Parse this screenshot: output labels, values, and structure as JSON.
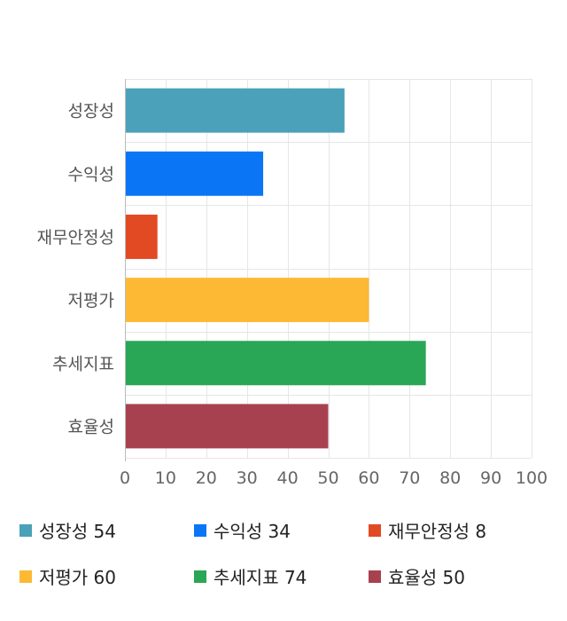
{
  "chart_data": {
    "type": "bar",
    "orientation": "horizontal",
    "categories": [
      "성장성",
      "수익성",
      "재무안정성",
      "저평가",
      "추세지표",
      "효율성"
    ],
    "values": [
      54,
      34,
      8,
      60,
      74,
      50
    ],
    "colors": [
      "#4aa1b9",
      "#0a76f5",
      "#e24a24",
      "#fdb933",
      "#29a656",
      "#a8414f"
    ],
    "xlim": [
      0,
      100
    ],
    "xticks": [
      0,
      10,
      20,
      30,
      40,
      50,
      60,
      70,
      80,
      90,
      100
    ],
    "grid": true,
    "legend_position": "bottom"
  },
  "legend": {
    "items": [
      {
        "label": "성장성 54",
        "color": "#4aa1b9"
      },
      {
        "label": "수익성 34",
        "color": "#0a76f5"
      },
      {
        "label": "재무안정성 8",
        "color": "#e24a24"
      },
      {
        "label": "저평가 60",
        "color": "#fdb933"
      },
      {
        "label": "추세지표 74",
        "color": "#29a656"
      },
      {
        "label": "효율성 50",
        "color": "#a8414f"
      }
    ]
  }
}
